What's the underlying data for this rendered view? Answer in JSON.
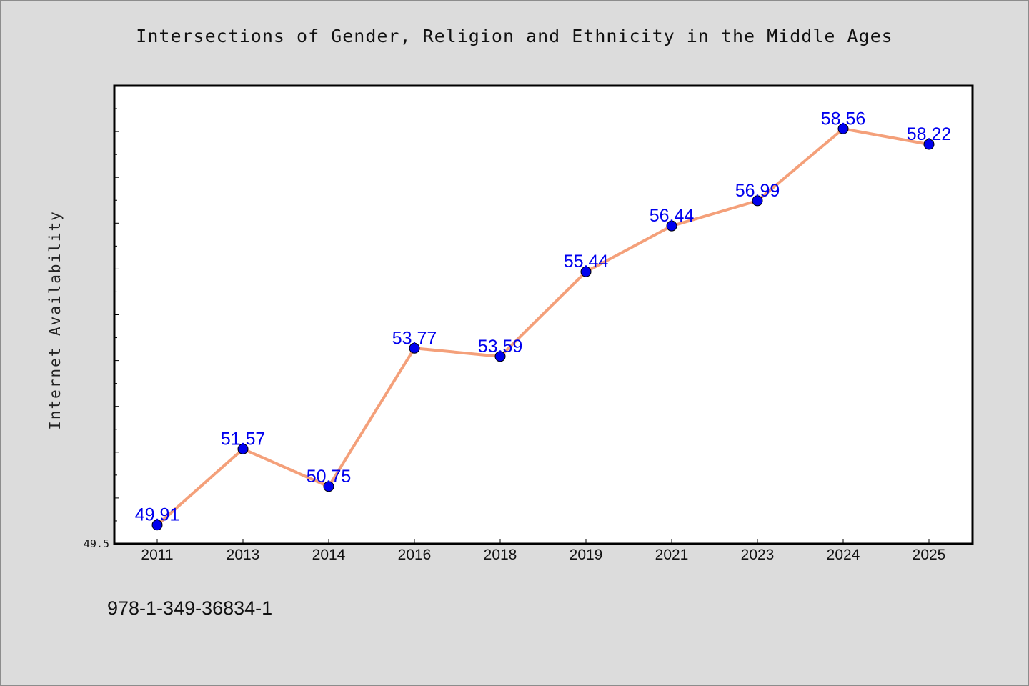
{
  "page": {
    "footer_code": "978-1-349-36834-1"
  },
  "chart_data": {
    "type": "line",
    "title": "Intersections of Gender, Religion and Ethnicity in the Middle Ages",
    "xlabel": "",
    "ylabel": "Internet Availability",
    "ylim": [
      49.5,
      59.5
    ],
    "y_tick_labels_shown": [
      "49.5"
    ],
    "categories": [
      "2011",
      "2013",
      "2014",
      "2016",
      "2018",
      "2019",
      "2021",
      "2023",
      "2024",
      "2025"
    ],
    "series": [
      {
        "values": [
          49.91,
          51.57,
          50.75,
          53.77,
          53.59,
          55.44,
          56.44,
          56.99,
          58.56,
          58.22
        ],
        "labels": [
          "49.91",
          "51.57",
          "50.75",
          "53.77",
          "53.59",
          "55.44",
          "56.44",
          "56.99",
          "58.56",
          "58.22"
        ],
        "line_color": "#f4a07a",
        "marker_color": "#0000ee",
        "label_color": "#0000ee"
      }
    ],
    "grid": false,
    "legend": "none",
    "plot_background": "#ffffff",
    "page_background": "#dcdcdc"
  }
}
